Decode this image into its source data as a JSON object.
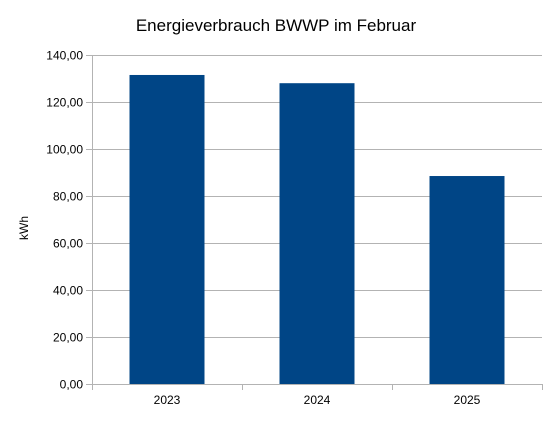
{
  "chart_data": {
    "type": "bar",
    "title": "Energieverbrauch BWWP im Februar",
    "xlabel": "",
    "ylabel": "kWh",
    "categories": [
      "2023",
      "2024",
      "2025"
    ],
    "values": [
      131.5,
      128.0,
      88.5
    ],
    "ylim": [
      0,
      140
    ],
    "yticks": [
      "0,00",
      "20,00",
      "40,00",
      "60,00",
      "80,00",
      "100,00",
      "120,00",
      "140,00"
    ],
    "grid": true,
    "legend": "none",
    "bar_color": "#004586",
    "grid_color": "#b3b3b3"
  }
}
